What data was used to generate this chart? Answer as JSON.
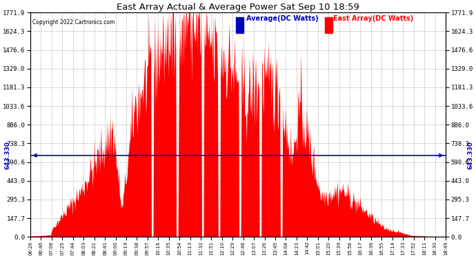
{
  "title": "East Array Actual & Average Power Sat Sep 10 18:59",
  "copyright": "Copyright 2022 Cartronics.com",
  "avg_label": "Average(DC Watts)",
  "east_label": "East Array(DC Watts)",
  "avg_value": 643.33,
  "y_max": 1771.9,
  "y_min": 0.0,
  "y_ticks": [
    0.0,
    147.7,
    295.3,
    443.0,
    590.6,
    738.3,
    886.0,
    1033.6,
    1181.3,
    1329.0,
    1476.6,
    1624.3,
    1771.9
  ],
  "y_tick_labels": [
    "0.0",
    "147.7",
    "295.3",
    "443.0",
    "590.6",
    "738.3",
    "886.0",
    "1033.6",
    "1181.3",
    "1329.0",
    "1476.6",
    "1624.3",
    "1771.9"
  ],
  "fill_color": "#FF0000",
  "avg_line_color": "#0000BB",
  "bg_color": "#FFFFFF",
  "grid_color": "#AAAAAA",
  "x_tick_labels": [
    "06:26",
    "06:46",
    "07:06",
    "07:25",
    "07:44",
    "08:03",
    "08:22",
    "08:41",
    "09:00",
    "09:19",
    "09:38",
    "09:57",
    "10:16",
    "10:35",
    "10:54",
    "11:13",
    "11:32",
    "11:51",
    "12:10",
    "12:29",
    "12:48",
    "13:07",
    "13:26",
    "13:45",
    "14:04",
    "14:23",
    "14:42",
    "15:01",
    "15:20",
    "15:39",
    "15:58",
    "16:17",
    "16:36",
    "16:55",
    "17:14",
    "17:33",
    "17:52",
    "18:11",
    "18:30",
    "18:49"
  ]
}
